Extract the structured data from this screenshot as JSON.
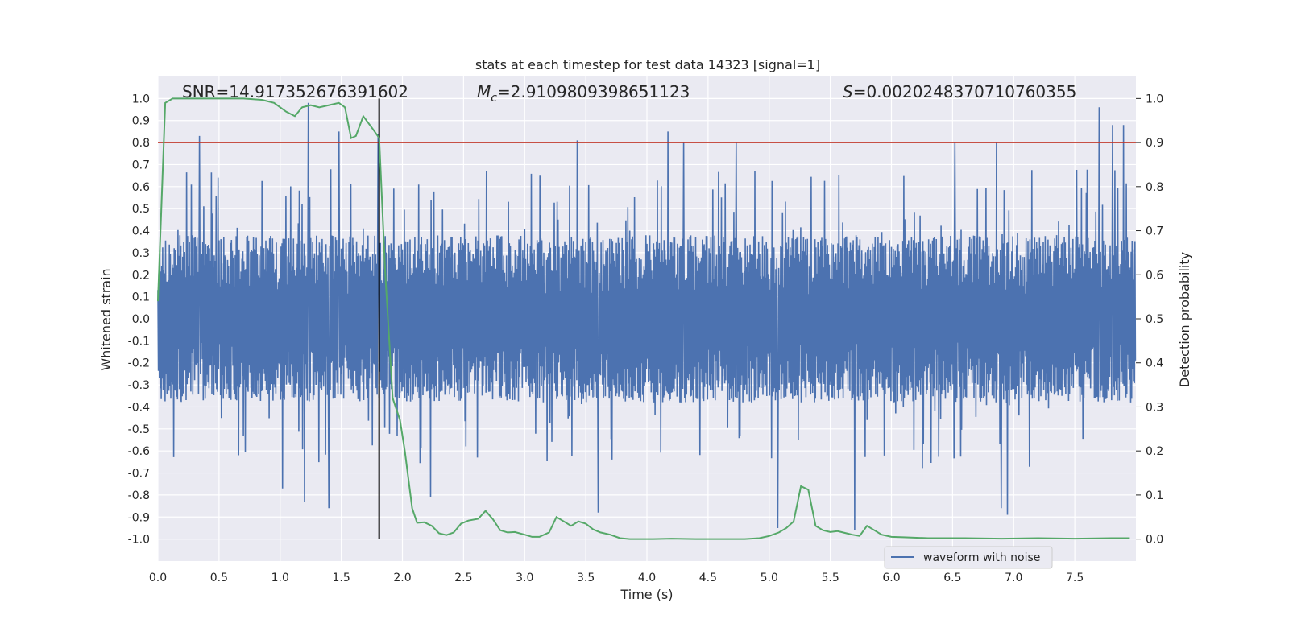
{
  "chart_data": {
    "type": "line",
    "title": "stats at each timestep for test data 14323 [signal=1]",
    "xlabel": "Time (s)",
    "ylabel_left": "Whitened strain",
    "ylabel_right": "Detection probability",
    "xlim": [
      0,
      8
    ],
    "ylim_left": [
      -1.1,
      1.1
    ],
    "ylim_right": [
      -0.05,
      1.05
    ],
    "xticks": [
      0.0,
      0.5,
      1.0,
      1.5,
      2.0,
      2.5,
      3.0,
      3.5,
      4.0,
      4.5,
      5.0,
      5.5,
      6.0,
      6.5,
      7.0,
      7.5
    ],
    "xtick_labels": [
      "0.0",
      "0.5",
      "1.0",
      "1.5",
      "2.0",
      "2.5",
      "3.0",
      "3.5",
      "4.0",
      "4.5",
      "5.0",
      "5.5",
      "6.0",
      "6.5",
      "7.0",
      "7.5"
    ],
    "yticks_left": [
      1.0,
      0.9,
      0.8,
      0.7,
      0.6,
      0.5,
      0.4,
      0.3,
      0.2,
      0.1,
      0.0,
      -0.1,
      -0.2,
      -0.3,
      -0.4,
      -0.5,
      -0.6,
      -0.7,
      -0.8,
      -0.9,
      -1.0
    ],
    "ytick_labels_left": [
      "1.0",
      "0.9",
      "0.8",
      "0.7",
      "0.6",
      "0.5",
      "0.4",
      "0.3",
      "0.2",
      "0.1",
      "0.0",
      "-0.1",
      "-0.2",
      "-0.3",
      "-0.4",
      "-0.5",
      "-0.6",
      "-0.7",
      "-0.8",
      "-0.9",
      "-1.0"
    ],
    "yticks_right": [
      1.0,
      0.9,
      0.8,
      0.7,
      0.6,
      0.5,
      0.4,
      0.3,
      0.2,
      0.1,
      0.0
    ],
    "ytick_labels_right": [
      "1.0",
      "0.9",
      "0.8",
      "0.7",
      "0.6",
      "0.5",
      "0.4",
      "0.3",
      "0.2",
      "0.1",
      "0.0"
    ],
    "annotations": {
      "snr": "SNR=14.917352676391602",
      "mc_symbol": "M",
      "mc_sub": "c",
      "mc_value": "=2.9109809398651123",
      "s_symbol": "S",
      "s_value": "=0.0020248370710760355"
    },
    "threshold": {
      "value": 0.9,
      "axis": "right",
      "color": "#c0392b"
    },
    "event_time": 1.81,
    "waveform": {
      "name": "waveform with noise",
      "color": "#4c72b0",
      "samples": 2048,
      "typical_envelope": 0.38,
      "max": 0.96,
      "min": -0.96,
      "spike_peaks": [
        [
          0.34,
          0.83
        ],
        [
          1.23,
          0.98
        ],
        [
          1.48,
          0.85
        ],
        [
          1.8,
          0.84
        ],
        [
          3.43,
          0.81
        ],
        [
          4.17,
          0.85
        ],
        [
          4.3,
          0.8
        ],
        [
          4.73,
          0.8
        ],
        [
          6.52,
          0.8
        ],
        [
          6.86,
          0.8
        ],
        [
          7.7,
          0.96
        ],
        [
          7.81,
          0.88
        ],
        [
          7.9,
          0.88
        ]
      ],
      "spike_troughs": [
        [
          1.02,
          -0.77
        ],
        [
          1.2,
          -0.83
        ],
        [
          1.4,
          -0.86
        ],
        [
          2.23,
          -0.81
        ],
        [
          3.6,
          -0.88
        ],
        [
          5.07,
          -0.95
        ],
        [
          5.7,
          -0.96
        ],
        [
          6.9,
          -0.86
        ],
        [
          6.95,
          -0.89
        ]
      ]
    },
    "probability": {
      "color": "#55a868",
      "x": [
        0.0,
        0.06,
        0.12,
        0.18,
        0.3,
        0.5,
        0.7,
        0.85,
        0.95,
        1.05,
        1.12,
        1.18,
        1.25,
        1.32,
        1.4,
        1.48,
        1.53,
        1.58,
        1.62,
        1.68,
        1.76,
        1.81,
        1.86,
        1.92,
        1.98,
        2.02,
        2.08,
        2.12,
        2.18,
        2.24,
        2.3,
        2.36,
        2.42,
        2.48,
        2.54,
        2.62,
        2.68,
        2.74,
        2.8,
        2.86,
        2.92,
        3.0,
        3.06,
        3.12,
        3.2,
        3.26,
        3.32,
        3.38,
        3.44,
        3.5,
        3.56,
        3.62,
        3.7,
        3.78,
        3.86,
        3.95,
        4.05,
        4.2,
        4.4,
        4.6,
        4.8,
        4.92,
        5.0,
        5.08,
        5.14,
        5.2,
        5.26,
        5.32,
        5.38,
        5.44,
        5.5,
        5.56,
        5.62,
        5.68,
        5.74,
        5.8,
        5.86,
        5.92,
        6.0,
        6.1,
        6.3,
        6.6,
        6.9,
        7.2,
        7.5,
        7.8,
        7.95
      ],
      "y": [
        0.54,
        0.99,
        1.0,
        1.0,
        1.0,
        1.0,
        1.0,
        0.997,
        0.99,
        0.97,
        0.96,
        0.98,
        0.985,
        0.98,
        0.985,
        0.99,
        0.98,
        0.91,
        0.915,
        0.96,
        0.93,
        0.91,
        0.6,
        0.32,
        0.27,
        0.2,
        0.07,
        0.037,
        0.038,
        0.03,
        0.013,
        0.009,
        0.015,
        0.035,
        0.042,
        0.046,
        0.064,
        0.045,
        0.02,
        0.015,
        0.016,
        0.01,
        0.005,
        0.005,
        0.015,
        0.05,
        0.04,
        0.03,
        0.04,
        0.035,
        0.022,
        0.015,
        0.01,
        0.002,
        0.0,
        0.0,
        0.0,
        0.001,
        0.0,
        0.0,
        0.0,
        0.002,
        0.007,
        0.015,
        0.025,
        0.04,
        0.12,
        0.112,
        0.03,
        0.02,
        0.016,
        0.018,
        0.014,
        0.01,
        0.007,
        0.03,
        0.02,
        0.01,
        0.005,
        0.004,
        0.002,
        0.002,
        0.001,
        0.002,
        0.001,
        0.002,
        0.002
      ]
    },
    "legend": {
      "label": "waveform with noise",
      "position": "lower-center-right"
    }
  }
}
